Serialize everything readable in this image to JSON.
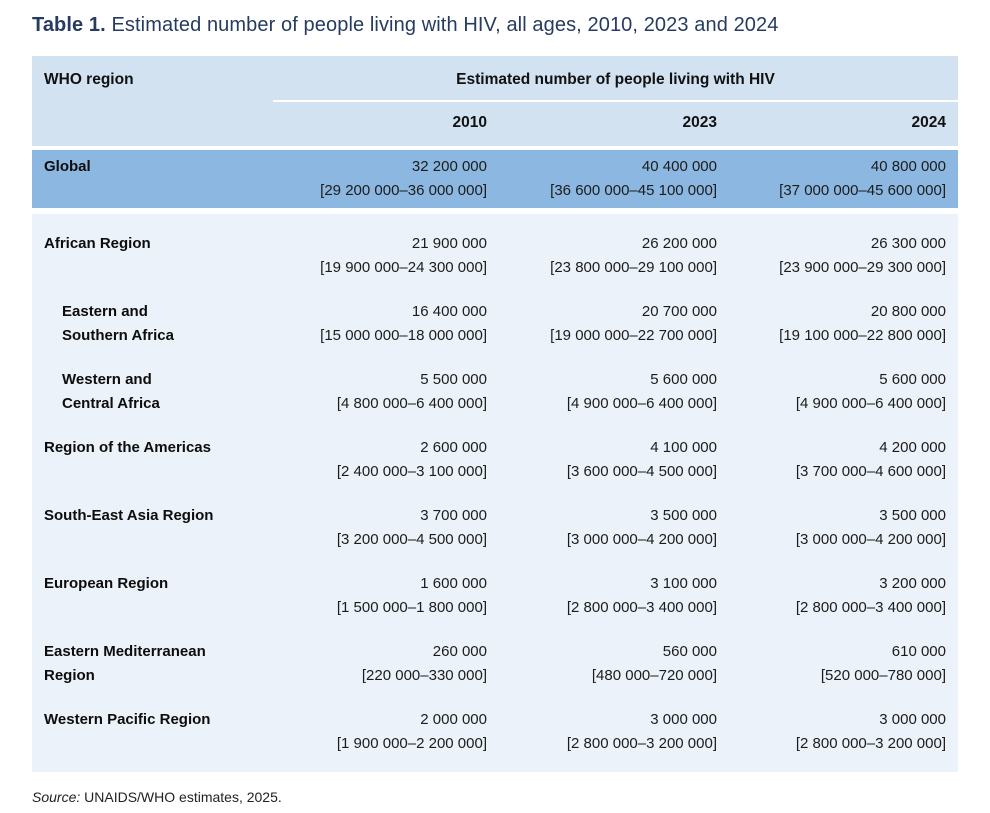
{
  "title": {
    "prefix": "Table 1.",
    "text": "Estimated number of people living with HIV, all ages, 2010, 2023 and 2024"
  },
  "table": {
    "region_header": "WHO region",
    "group_header": "Estimated number of people living with HIV",
    "year_headers": [
      "2010",
      "2023",
      "2024"
    ],
    "rows": [
      {
        "label": "Global",
        "highlight": true,
        "indent": false,
        "cells": [
          {
            "estimate": "32 200 000",
            "range": "[29 200 000–36 000 000]"
          },
          {
            "estimate": "40 400 000",
            "range": "[36 600 000–45 100 000]"
          },
          {
            "estimate": "40 800 000",
            "range": "[37 000 000–45 600 000]"
          }
        ]
      },
      {
        "label": "African Region",
        "highlight": false,
        "indent": false,
        "cells": [
          {
            "estimate": "21 900 000",
            "range": "[19 900 000–24 300 000]"
          },
          {
            "estimate": "26 200 000",
            "range": "[23 800 000–29 100 000]"
          },
          {
            "estimate": "26 300 000",
            "range": "[23 900 000–29 300 000]"
          }
        ]
      },
      {
        "label": "Eastern and\nSouthern Africa",
        "highlight": false,
        "indent": true,
        "cells": [
          {
            "estimate": "16 400 000",
            "range": "[15 000 000–18 000 000]"
          },
          {
            "estimate": "20 700 000",
            "range": "[19 000 000–22 700 000]"
          },
          {
            "estimate": "20 800 000",
            "range": "[19 100 000–22 800 000]"
          }
        ]
      },
      {
        "label": "Western and\nCentral Africa",
        "highlight": false,
        "indent": true,
        "cells": [
          {
            "estimate": "5 500 000",
            "range": "[4 800 000–6 400 000]"
          },
          {
            "estimate": "5 600 000",
            "range": "[4 900 000–6 400 000]"
          },
          {
            "estimate": "5 600 000",
            "range": "[4 900 000–6 400 000]"
          }
        ]
      },
      {
        "label": "Region of the Americas",
        "highlight": false,
        "indent": false,
        "cells": [
          {
            "estimate": "2 600 000",
            "range": "[2 400 000–3 100 000]"
          },
          {
            "estimate": "4 100 000",
            "range": "[3 600 000–4 500 000]"
          },
          {
            "estimate": "4 200 000",
            "range": "[3 700 000–4 600 000]"
          }
        ]
      },
      {
        "label": "South-East Asia Region",
        "highlight": false,
        "indent": false,
        "cells": [
          {
            "estimate": "3 700 000",
            "range": "[3 200 000–4 500 000]"
          },
          {
            "estimate": "3 500 000",
            "range": "[3 000 000–4 200 000]"
          },
          {
            "estimate": "3 500 000",
            "range": "[3 000 000–4 200 000]"
          }
        ]
      },
      {
        "label": "European Region",
        "highlight": false,
        "indent": false,
        "cells": [
          {
            "estimate": "1 600 000",
            "range": "[1 500 000–1 800 000]"
          },
          {
            "estimate": "3 100 000",
            "range": "[2 800 000–3 400 000]"
          },
          {
            "estimate": "3 200 000",
            "range": "[2 800 000–3 400 000]"
          }
        ]
      },
      {
        "label": "Eastern Mediterranean\nRegion",
        "highlight": false,
        "indent": false,
        "cells": [
          {
            "estimate": "260 000",
            "range": "[220 000–330 000]"
          },
          {
            "estimate": "560 000",
            "range": "[480 000–720 000]"
          },
          {
            "estimate": "610 000",
            "range": "[520 000–780 000]"
          }
        ]
      },
      {
        "label": "Western Pacific Region",
        "highlight": false,
        "indent": false,
        "cells": [
          {
            "estimate": "2 000 000",
            "range": "[1 900 000–2 200 000]"
          },
          {
            "estimate": "3 000 000",
            "range": "[2 800 000–3 200 000]"
          },
          {
            "estimate": "3 000 000",
            "range": "[2 800 000–3 200 000]"
          }
        ]
      }
    ]
  },
  "source": {
    "label": "Source:",
    "text": "UNAIDS/WHO estimates, 2025."
  },
  "colors": {
    "header_bg": "#d2e2f1",
    "highlight_row_bg": "#8bb7e0",
    "body_bg": "#ebf2f9",
    "title_color": "#263b5f",
    "text_color": "#1a1a1a"
  }
}
